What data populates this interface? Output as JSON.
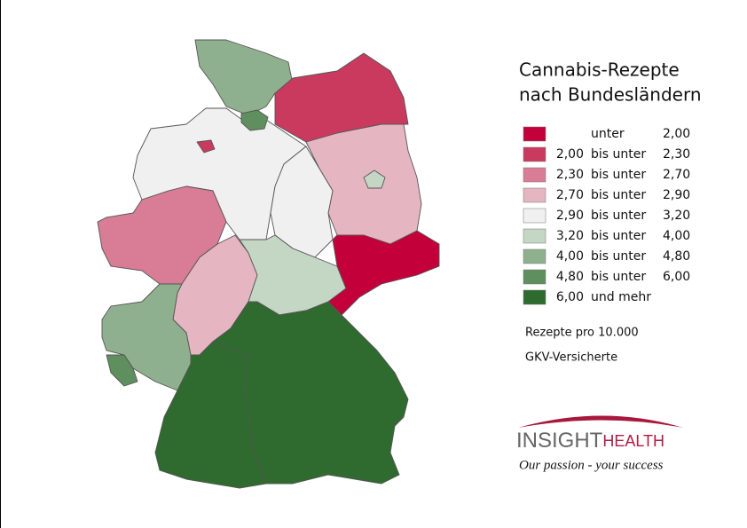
{
  "title": {
    "lines": [
      "Cannabis-Rezepte",
      "nach Bundesländern"
    ]
  },
  "legend": {
    "classes": [
      {
        "label": "unter",
        "upper": "2,00",
        "color": "#c4003a"
      },
      {
        "lower": "2,00",
        "label": "bis unter",
        "upper": "2,30",
        "color": "#c93a5e"
      },
      {
        "lower": "2,30",
        "label": "bis unter",
        "upper": "2,70",
        "color": "#d97c95"
      },
      {
        "lower": "2,70",
        "label": "bis unter",
        "upper": "2,90",
        "color": "#e6b5c2"
      },
      {
        "lower": "2,90",
        "label": "bis unter",
        "upper": "3,20",
        "color": "#f0f0f0"
      },
      {
        "lower": "3,20",
        "label": "bis unter",
        "upper": "4,00",
        "color": "#c4d6c4"
      },
      {
        "lower": "4,00",
        "label": "bis unter",
        "upper": "4,80",
        "color": "#8fb08f"
      },
      {
        "lower": "4,80",
        "label": "bis unter",
        "upper": "6,00",
        "color": "#5f8f5f"
      },
      {
        "lower": "6,00",
        "label": "und mehr",
        "color": "#2f6a2f"
      }
    ]
  },
  "notes": [
    "Rezepte pro 10.000",
    "GKV-Versicherte"
  ],
  "logo": {
    "brand": "INSIGHT",
    "brand_suffix": "HEALTH",
    "tagline": "Our passion - your success"
  }
}
